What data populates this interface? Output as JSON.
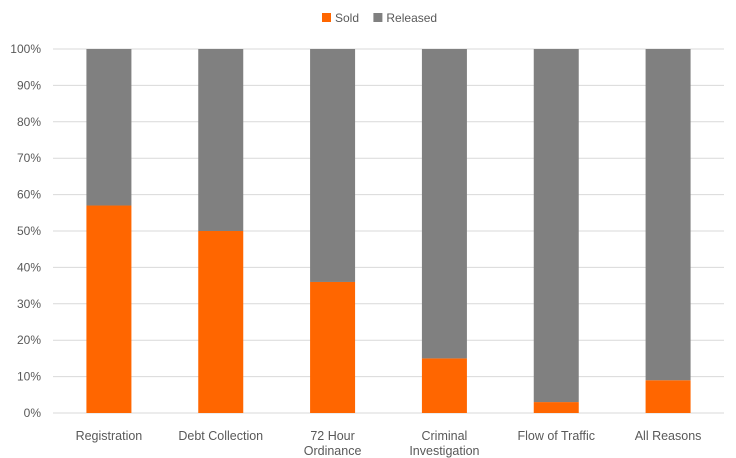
{
  "chart_data": {
    "type": "bar",
    "stacked": true,
    "percent": true,
    "categories": [
      [
        "Registration"
      ],
      [
        "Debt Collection"
      ],
      [
        "72 Hour",
        "Ordinance"
      ],
      [
        "Criminal",
        "Investigation"
      ],
      [
        "Flow of Traffic"
      ],
      [
        "All Reasons"
      ]
    ],
    "series": [
      {
        "name": "Sold",
        "color": "#FF6600",
        "values": [
          57,
          50,
          36,
          15,
          3,
          9
        ]
      },
      {
        "name": "Released",
        "color": "#808080",
        "values": [
          43,
          50,
          64,
          85,
          97,
          91
        ]
      }
    ],
    "ylim": [
      0,
      100
    ],
    "yticks": [
      "0%",
      "10%",
      "20%",
      "30%",
      "40%",
      "50%",
      "60%",
      "70%",
      "80%",
      "90%",
      "100%"
    ],
    "grid": true,
    "legend_position": "top-center"
  }
}
